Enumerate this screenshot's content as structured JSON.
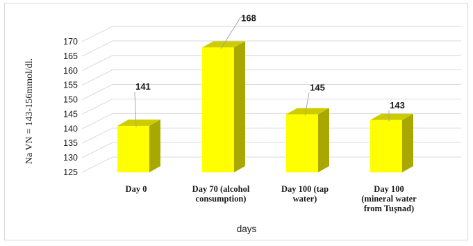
{
  "chart_data": {
    "type": "bar",
    "style": "3d-column",
    "categories": [
      [
        "Day 0"
      ],
      [
        "Day 70 (alcohol",
        "consumption)"
      ],
      [
        "Day 100 (tap",
        "water)"
      ],
      [
        "Day 100",
        "(mineral water",
        "from Tușnad)"
      ]
    ],
    "values": [
      141,
      168,
      145,
      143
    ],
    "data_labels": [
      "141",
      "168",
      "145",
      "143"
    ],
    "title": "",
    "xlabel": "days",
    "ylabel": "Na VN = 143-156mmol/dl.",
    "ylim": [
      125,
      170
    ],
    "yticks": [
      "125",
      "130",
      "135",
      "140",
      "145",
      "150",
      "155",
      "160",
      "165",
      "170"
    ],
    "grid": true,
    "legend": "none",
    "colors": {
      "bar_front": "#ffff00",
      "bar_side": "#a8a800",
      "bar_top": "#cccc00",
      "gridline": "#d9d9d9",
      "leader_line": "#a6a6a6"
    }
  }
}
